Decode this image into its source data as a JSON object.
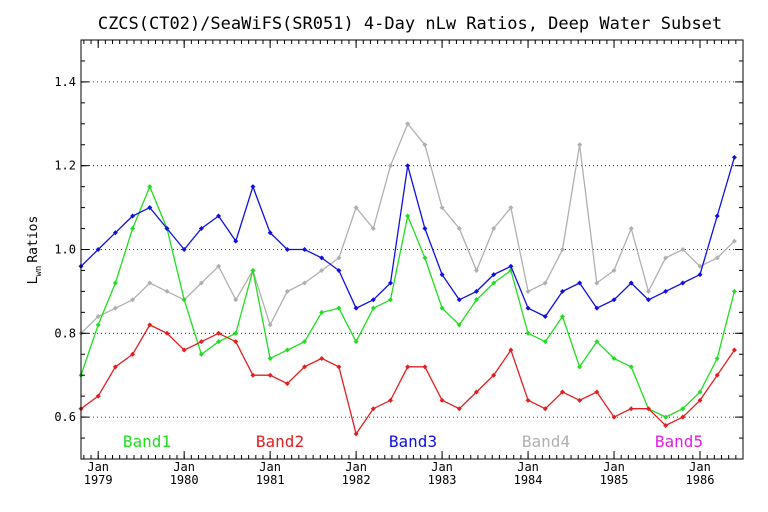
{
  "chart_data": {
    "type": "line",
    "title": "CZCS(CT02)/SeaWiFS(SR051) 4-Day nLw Ratios, Deep Water Subset",
    "ylabel": "Ratios",
    "ylabel_symbol": "L",
    "ylabel_subscript": "wn",
    "xlim": [
      1978.8,
      1986.5
    ],
    "ylim": [
      0.5,
      1.5
    ],
    "yticks": [
      "0.6",
      "0.8",
      "1.0",
      "1.2",
      "1.4"
    ],
    "xticks": [
      {
        "month": "Jan",
        "year": "1979",
        "x": 1979.0
      },
      {
        "month": "Jan",
        "year": "1980",
        "x": 1980.0
      },
      {
        "month": "Jan",
        "year": "1981",
        "x": 1981.0
      },
      {
        "month": "Jan",
        "year": "1982",
        "x": 1982.0
      },
      {
        "month": "Jan",
        "year": "1983",
        "x": 1983.0
      },
      {
        "month": "Jan",
        "year": "1984",
        "x": 1984.0
      },
      {
        "month": "Jan",
        "year": "1985",
        "x": 1985.0
      },
      {
        "month": "Jan",
        "year": "1986",
        "x": 1986.0
      }
    ],
    "grid": "horizontal dotted",
    "legend_position": "bottom",
    "series": [
      {
        "name": "Band1",
        "color": "#22dd22",
        "x": [
          1978.8,
          1979.0,
          1979.2,
          1979.4,
          1979.6,
          1979.8,
          1980.0,
          1980.2,
          1980.4,
          1980.6,
          1980.8,
          1981.0,
          1981.2,
          1981.4,
          1981.6,
          1981.8,
          1982.0,
          1982.2,
          1982.4,
          1982.6,
          1982.8,
          1983.0,
          1983.2,
          1983.4,
          1983.6,
          1983.8,
          1984.0,
          1984.2,
          1984.4,
          1984.6,
          1984.8,
          1985.0,
          1985.2,
          1985.4,
          1985.6,
          1985.8,
          1986.0,
          1986.2,
          1986.4
        ],
        "y": [
          0.7,
          0.82,
          0.92,
          1.05,
          1.15,
          1.05,
          0.88,
          0.75,
          0.78,
          0.8,
          0.95,
          0.74,
          0.76,
          0.78,
          0.85,
          0.86,
          0.78,
          0.86,
          0.88,
          1.08,
          0.98,
          0.86,
          0.82,
          0.88,
          0.92,
          0.95,
          0.8,
          0.78,
          0.84,
          0.72,
          0.78,
          0.74,
          0.72,
          0.62,
          0.6,
          0.62,
          0.66,
          0.74,
          0.9
        ]
      },
      {
        "name": "Band2",
        "color": "#e02020",
        "x": [
          1978.8,
          1979.0,
          1979.2,
          1979.4,
          1979.6,
          1979.8,
          1980.0,
          1980.2,
          1980.4,
          1980.6,
          1980.8,
          1981.0,
          1981.2,
          1981.4,
          1981.6,
          1981.8,
          1982.0,
          1982.2,
          1982.4,
          1982.6,
          1982.8,
          1983.0,
          1983.2,
          1983.4,
          1983.6,
          1983.8,
          1984.0,
          1984.2,
          1984.4,
          1984.6,
          1984.8,
          1985.0,
          1985.2,
          1985.4,
          1985.6,
          1985.8,
          1986.0,
          1986.2,
          1986.4
        ],
        "y": [
          0.62,
          0.65,
          0.72,
          0.75,
          0.82,
          0.8,
          0.76,
          0.78,
          0.8,
          0.78,
          0.7,
          0.7,
          0.68,
          0.72,
          0.74,
          0.72,
          0.56,
          0.62,
          0.64,
          0.72,
          0.72,
          0.64,
          0.62,
          0.66,
          0.7,
          0.76,
          0.64,
          0.62,
          0.66,
          0.64,
          0.66,
          0.6,
          0.62,
          0.62,
          0.58,
          0.6,
          0.64,
          0.7,
          0.76
        ]
      },
      {
        "name": "Band3",
        "color": "#1010e0",
        "x": [
          1978.8,
          1979.0,
          1979.2,
          1979.4,
          1979.6,
          1979.8,
          1980.0,
          1980.2,
          1980.4,
          1980.6,
          1980.8,
          1981.0,
          1981.2,
          1981.4,
          1981.6,
          1981.8,
          1982.0,
          1982.2,
          1982.4,
          1982.6,
          1982.8,
          1983.0,
          1983.2,
          1983.4,
          1983.6,
          1983.8,
          1984.0,
          1984.2,
          1984.4,
          1984.6,
          1984.8,
          1985.0,
          1985.2,
          1985.4,
          1985.6,
          1985.8,
          1986.0,
          1986.2,
          1986.4
        ],
        "y": [
          0.96,
          1.0,
          1.04,
          1.08,
          1.1,
          1.05,
          1.0,
          1.05,
          1.08,
          1.02,
          1.15,
          1.04,
          1.0,
          1.0,
          0.98,
          0.95,
          0.86,
          0.88,
          0.92,
          1.2,
          1.05,
          0.94,
          0.88,
          0.9,
          0.94,
          0.96,
          0.86,
          0.84,
          0.9,
          0.92,
          0.86,
          0.88,
          0.92,
          0.88,
          0.9,
          0.92,
          0.94,
          1.08,
          1.22
        ]
      },
      {
        "name": "Band4",
        "color": "#b0b0b0",
        "x": [
          1978.8,
          1979.0,
          1979.2,
          1979.4,
          1979.6,
          1979.8,
          1980.0,
          1980.2,
          1980.4,
          1980.6,
          1980.8,
          1981.0,
          1981.2,
          1981.4,
          1981.6,
          1981.8,
          1982.0,
          1982.2,
          1982.4,
          1982.6,
          1982.8,
          1983.0,
          1983.2,
          1983.4,
          1983.6,
          1983.8,
          1984.0,
          1984.2,
          1984.4,
          1984.6,
          1984.8,
          1985.0,
          1985.2,
          1985.4,
          1985.6,
          1985.8,
          1986.0,
          1986.2,
          1986.4
        ],
        "y": [
          0.8,
          0.84,
          0.86,
          0.88,
          0.92,
          0.9,
          0.88,
          0.92,
          0.96,
          0.88,
          0.95,
          0.82,
          0.9,
          0.92,
          0.95,
          0.98,
          1.1,
          1.05,
          1.2,
          1.3,
          1.25,
          1.1,
          1.05,
          0.95,
          1.05,
          1.1,
          0.9,
          0.92,
          1.0,
          1.25,
          0.92,
          0.95,
          1.05,
          0.9,
          0.98,
          1.0,
          0.96,
          0.98,
          1.02
        ]
      },
      {
        "name": "Band5",
        "color": "#e020e0",
        "x": [],
        "y": []
      }
    ]
  }
}
